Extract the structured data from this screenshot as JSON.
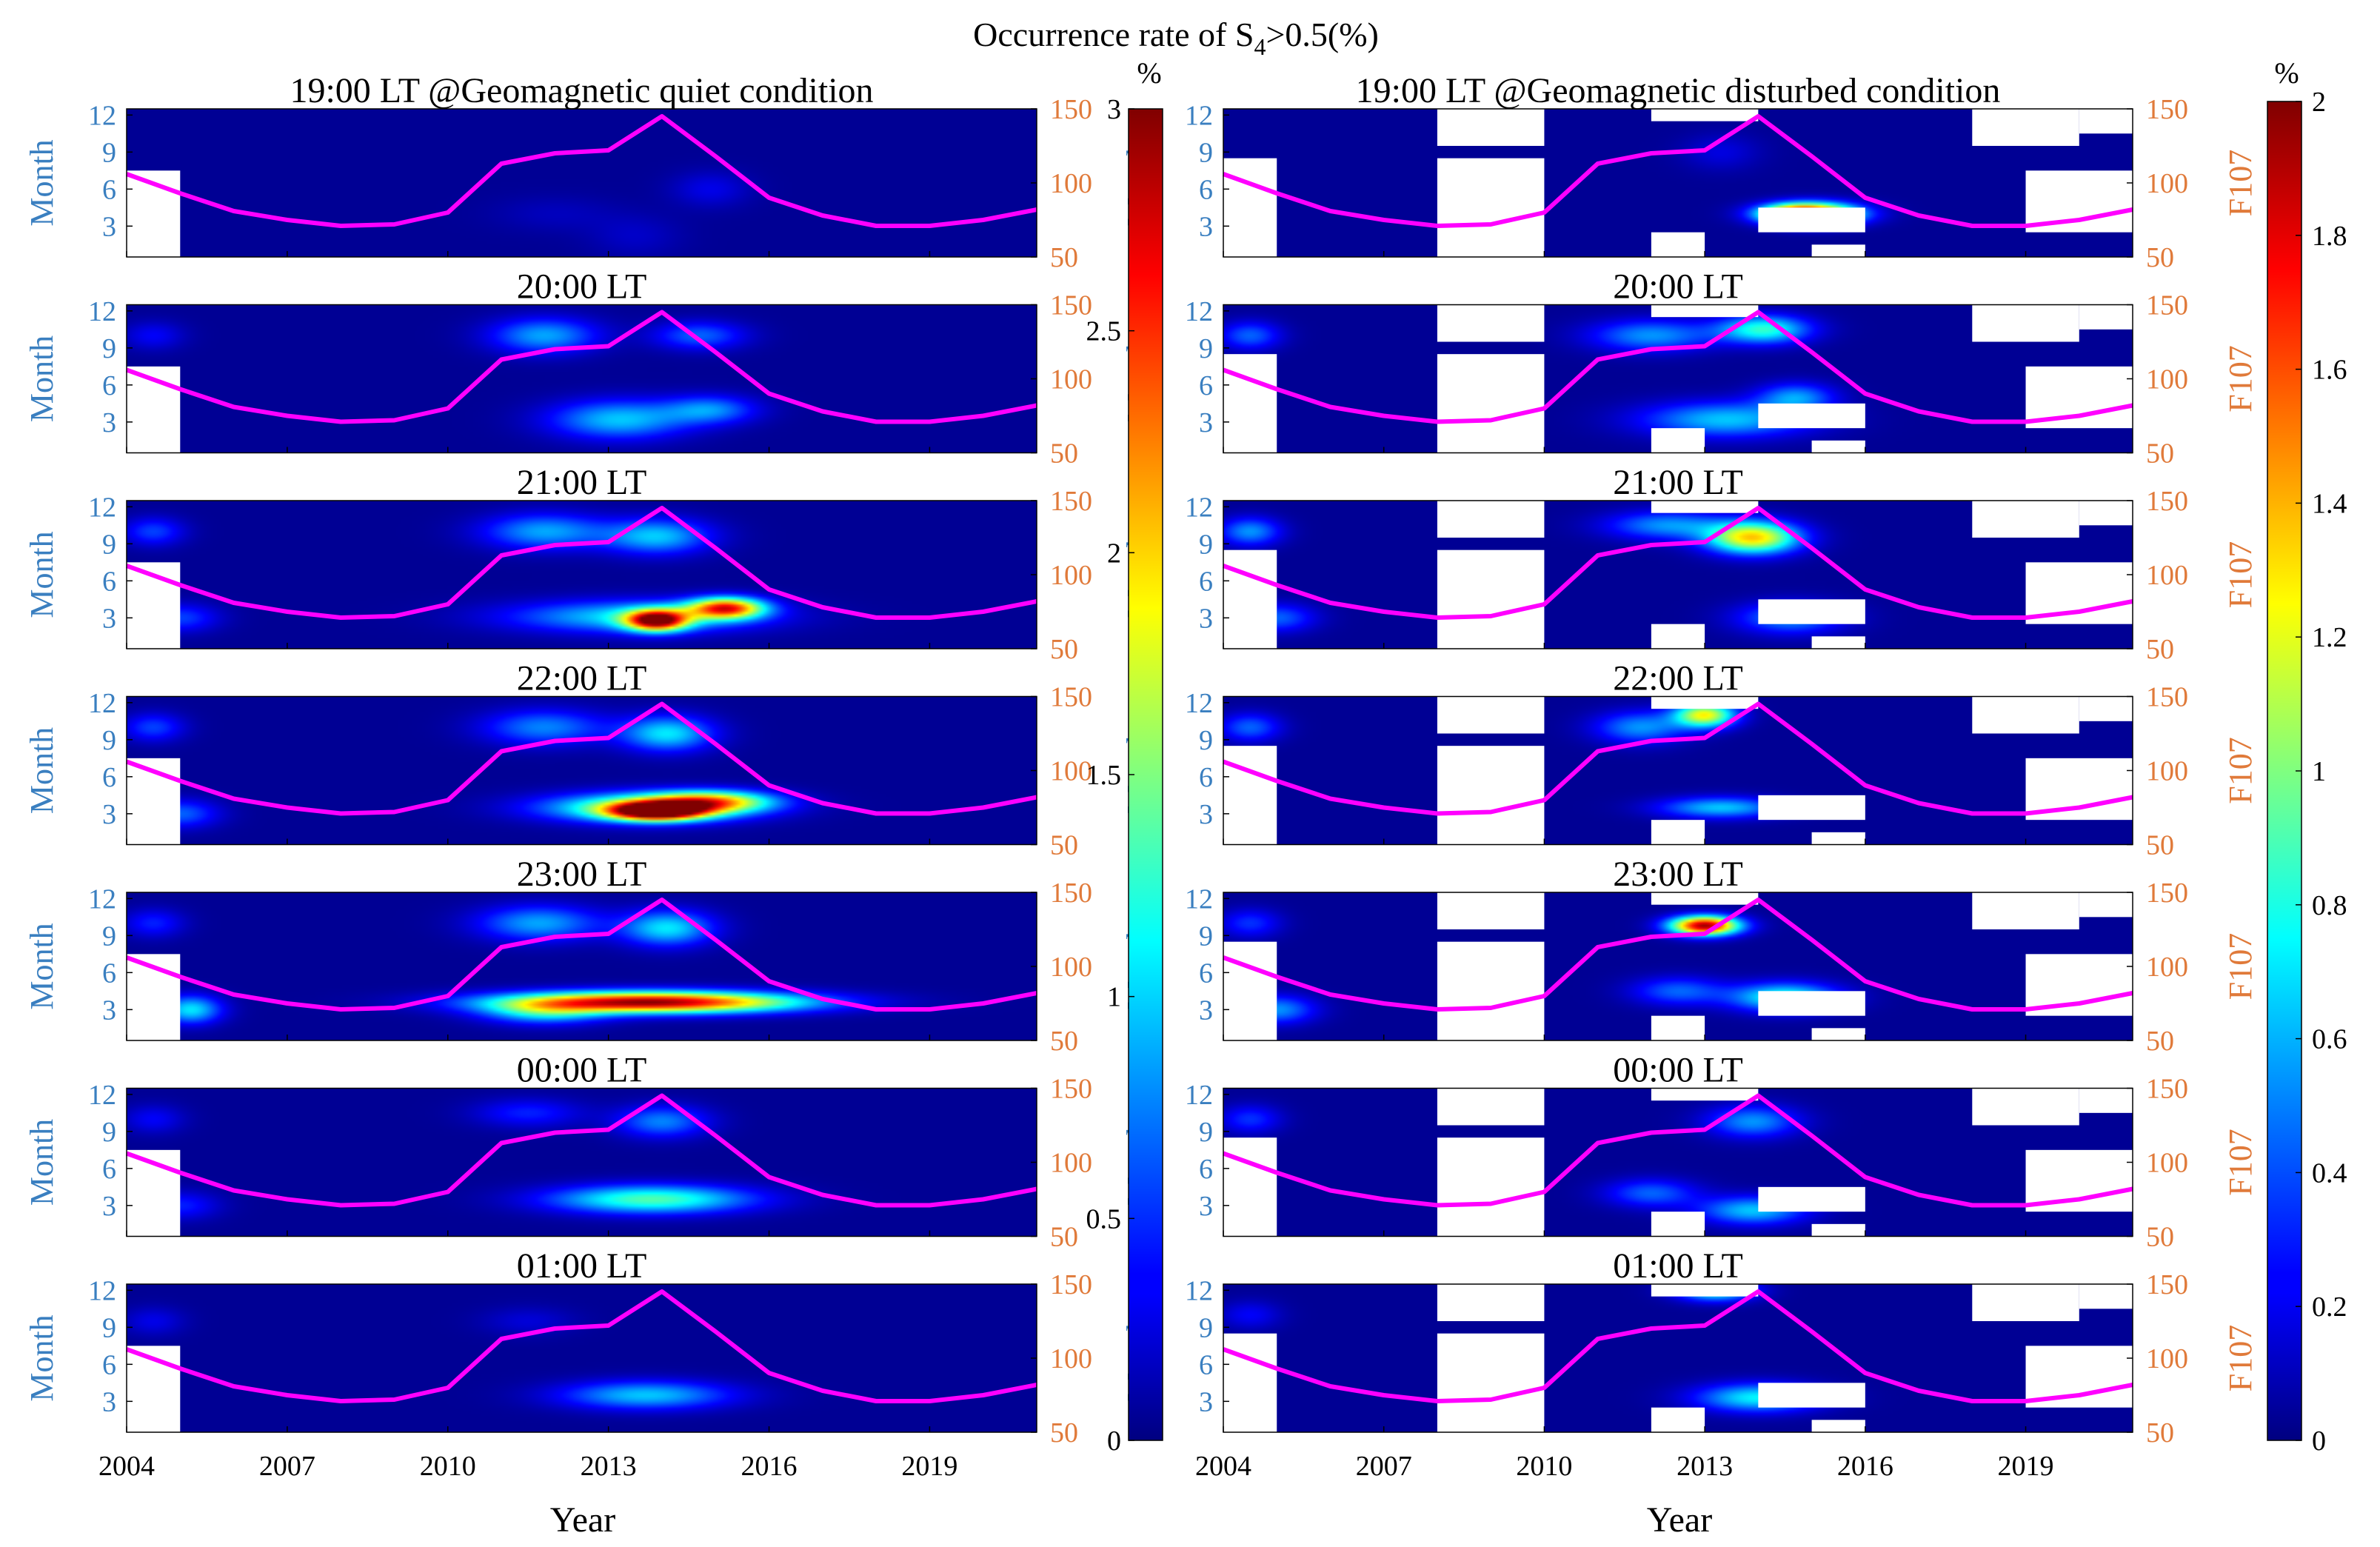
{
  "chart_data": {
    "type": "heatmap",
    "title": "Occurrence rate of S",
    "title_sub": "4",
    "title_tail": ">0.5(%)",
    "x_tick_labels": [
      "2004",
      "2007",
      "2010",
      "2013",
      "2016",
      "2019"
    ],
    "x_ticks": [
      2004,
      2007,
      2010,
      2013,
      2016,
      2019
    ],
    "xlim": [
      2004,
      2021
    ],
    "xlabel": "Year",
    "ylabel_left": "Month",
    "ylabel_right": "F107",
    "y_tick_labels": [
      "12",
      "9",
      "6",
      "3"
    ],
    "y_ticks": [
      12,
      9,
      6,
      3
    ],
    "ylim": [
      0.5,
      12.5
    ],
    "f107_tick_labels": [
      "150",
      "100",
      "50"
    ],
    "f107_ticks": [
      150,
      100,
      50
    ],
    "f107_range": [
      50,
      150
    ],
    "f107_line_color": "#ff00ff",
    "f107_axis_color": "#e07a3a",
    "month_axis_color": "#3a7fc0",
    "f107_series": {
      "name": "F107",
      "years": [
        2004,
        2005,
        2006,
        2007,
        2008,
        2009,
        2010,
        2011,
        2012,
        2013,
        2014,
        2015,
        2016,
        2017,
        2018,
        2019,
        2020,
        2021
      ],
      "values": [
        106,
        93,
        81,
        75,
        71,
        72,
        80,
        113,
        120,
        122,
        145,
        118,
        90,
        78,
        71,
        71,
        75,
        82
      ]
    },
    "colorbars": [
      {
        "side": "left",
        "unit": "%",
        "tick_labels": [
          "3",
          "2.5",
          "2",
          "1.5",
          "1",
          "0.5",
          "0"
        ],
        "ticks": [
          3,
          2.5,
          2,
          1.5,
          1,
          0.5,
          0
        ],
        "range": [
          0,
          3
        ]
      },
      {
        "side": "right",
        "unit": "%",
        "tick_labels": [
          "2",
          "1.8",
          "1.6",
          "1.4",
          "1.2",
          "1",
          "0.8",
          "0.6",
          "0.4",
          "0.2",
          "0"
        ],
        "ticks": [
          2,
          1.8,
          1.6,
          1.4,
          1.2,
          1,
          0.8,
          0.6,
          0.4,
          0.2,
          0
        ],
        "range": [
          0,
          2
        ]
      }
    ],
    "columns": [
      {
        "id": "quiet",
        "vmax": 3,
        "show_f107_label": false,
        "panels": [
          {
            "title": "19:00 LT @Geomagnetic quiet condition",
            "blobs": [
              [
                2013.5,
                2.2,
                0.6,
                1.2,
                0.15
              ],
              [
                2014.9,
                6,
                0.5,
                1,
                0.25
              ],
              [
                2012,
                4,
                0.8,
                1,
                0.12
              ]
            ]
          },
          {
            "title": "20:00 LT",
            "blobs": [
              [
                2011.8,
                10,
                0.7,
                1,
                0.8
              ],
              [
                2014.7,
                10,
                0.6,
                0.8,
                0.6
              ],
              [
                2013.2,
                3.2,
                0.9,
                1.1,
                0.9
              ],
              [
                2014.9,
                4,
                0.6,
                0.8,
                0.7
              ],
              [
                2004.5,
                10,
                0.4,
                0.8,
                0.3
              ]
            ]
          },
          {
            "title": "21:00 LT",
            "blobs": [
              [
                2011.8,
                10,
                0.8,
                1,
                0.8
              ],
              [
                2013.9,
                9.6,
                0.7,
                1,
                0.9
              ],
              [
                2013.5,
                3.1,
                1.6,
                0.9,
                1.0
              ],
              [
                2013.9,
                2.8,
                0.4,
                0.6,
                2.6
              ],
              [
                2015.2,
                3.8,
                0.5,
                0.6,
                2.3
              ],
              [
                2005,
                3,
                0.5,
                0.8,
                0.5
              ],
              [
                2004.5,
                10,
                0.4,
                0.8,
                0.5
              ]
            ]
          },
          {
            "title": "22:00 LT",
            "blobs": [
              [
                2011.8,
                10,
                0.8,
                1,
                0.7
              ],
              [
                2014.1,
                9.5,
                0.6,
                1,
                1.0
              ],
              [
                2013.7,
                3.5,
                1.3,
                0.8,
                1.6
              ],
              [
                2013.9,
                3.2,
                0.6,
                0.5,
                2.8
              ],
              [
                2014.9,
                4,
                0.8,
                0.6,
                1.7
              ],
              [
                2004.5,
                10,
                0.4,
                0.8,
                0.5
              ],
              [
                2005,
                3,
                0.5,
                0.8,
                0.6
              ]
            ]
          },
          {
            "title": "23:00 LT",
            "blobs": [
              [
                2011.7,
                10,
                0.8,
                1,
                0.8
              ],
              [
                2014.1,
                9.6,
                0.6,
                1,
                1.0
              ],
              [
                2013.8,
                3.6,
                1.9,
                0.6,
                2.9
              ],
              [
                2011.8,
                2.8,
                0.8,
                0.7,
                0.9
              ],
              [
                2005.2,
                3,
                0.4,
                0.8,
                1.0
              ],
              [
                2004.5,
                10,
                0.4,
                0.8,
                0.4
              ]
            ]
          },
          {
            "title": "00:00 LT",
            "blobs": [
              [
                2014,
                9.8,
                0.6,
                0.9,
                0.7
              ],
              [
                2013.8,
                3.5,
                1.3,
                0.8,
                1.3
              ],
              [
                2011.5,
                10.5,
                0.7,
                0.8,
                0.4
              ],
              [
                2004.5,
                10,
                0.4,
                0.8,
                0.3
              ],
              [
                2005,
                3,
                0.5,
                0.8,
                0.4
              ]
            ]
          },
          {
            "title": "01:00 LT",
            "blobs": [
              [
                2013.7,
                3.5,
                1.1,
                0.8,
                0.9
              ],
              [
                2011.5,
                9.5,
                0.6,
                0.8,
                0.2
              ],
              [
                2004.5,
                9.5,
                0.4,
                0.8,
                0.25
              ]
            ]
          }
        ]
      },
      {
        "id": "disturbed",
        "vmax": 2,
        "show_f107_label": true,
        "panels": [
          {
            "title": "19:00 LT @Geomagnetic disturbed condition",
            "blobs": [
              [
                2015,
                4,
                0.6,
                0.6,
                1.9
              ],
              [
                2014.6,
                4,
                0.4,
                0.5,
                0.6
              ],
              [
                2013.3,
                9,
                0.5,
                1,
                0.15
              ]
            ]
          },
          {
            "title": "20:00 LT",
            "blobs": [
              [
                2012,
                10,
                0.8,
                0.9,
                0.5
              ],
              [
                2014.1,
                10.5,
                0.6,
                0.8,
                0.8
              ],
              [
                2013.4,
                3.2,
                1.1,
                1,
                0.6
              ],
              [
                2014.7,
                5,
                0.5,
                0.8,
                0.5
              ],
              [
                2004.5,
                10,
                0.4,
                0.8,
                0.4
              ]
            ]
          },
          {
            "title": "21:00 LT",
            "blobs": [
              [
                2013.9,
                9.5,
                0.6,
                0.9,
                1.3
              ],
              [
                2012.3,
                10.5,
                0.8,
                0.8,
                0.5
              ],
              [
                2014.6,
                3,
                0.7,
                0.9,
                0.5
              ],
              [
                2004.5,
                10,
                0.4,
                0.8,
                0.5
              ],
              [
                2005,
                3,
                0.5,
                0.8,
                0.4
              ]
            ]
          },
          {
            "title": "22:00 LT",
            "blobs": [
              [
                2013,
                11,
                0.4,
                0.7,
                1.2
              ],
              [
                2011.8,
                10,
                0.6,
                0.9,
                0.5
              ],
              [
                2013.3,
                3.5,
                0.8,
                0.6,
                0.6
              ],
              [
                2004.5,
                10,
                0.4,
                0.8,
                0.4
              ]
            ]
          },
          {
            "title": "23:00 LT",
            "blobs": [
              [
                2013,
                9.8,
                0.45,
                0.55,
                1.9
              ],
              [
                2014.5,
                4,
                0.7,
                0.8,
                0.8
              ],
              [
                2012.5,
                4.5,
                0.6,
                0.8,
                0.4
              ],
              [
                2005,
                3,
                0.5,
                0.8,
                0.5
              ],
              [
                2004.5,
                10,
                0.4,
                0.8,
                0.3
              ]
            ]
          },
          {
            "title": "00:00 LT",
            "blobs": [
              [
                2013.9,
                9.8,
                0.6,
                0.9,
                0.5
              ],
              [
                2013.9,
                2.6,
                0.7,
                0.8,
                0.6
              ],
              [
                2012,
                4,
                0.6,
                0.8,
                0.4
              ],
              [
                2004.5,
                10,
                0.4,
                0.8,
                0.3
              ]
            ]
          },
          {
            "title": "01:00 LT",
            "blobs": [
              [
                2013.2,
                12,
                0.5,
                0.6,
                0.8
              ],
              [
                2014,
                3.3,
                0.8,
                0.8,
                0.7
              ],
              [
                2004.5,
                10,
                0.4,
                0.8,
                0.2
              ]
            ]
          }
        ]
      }
    ]
  }
}
